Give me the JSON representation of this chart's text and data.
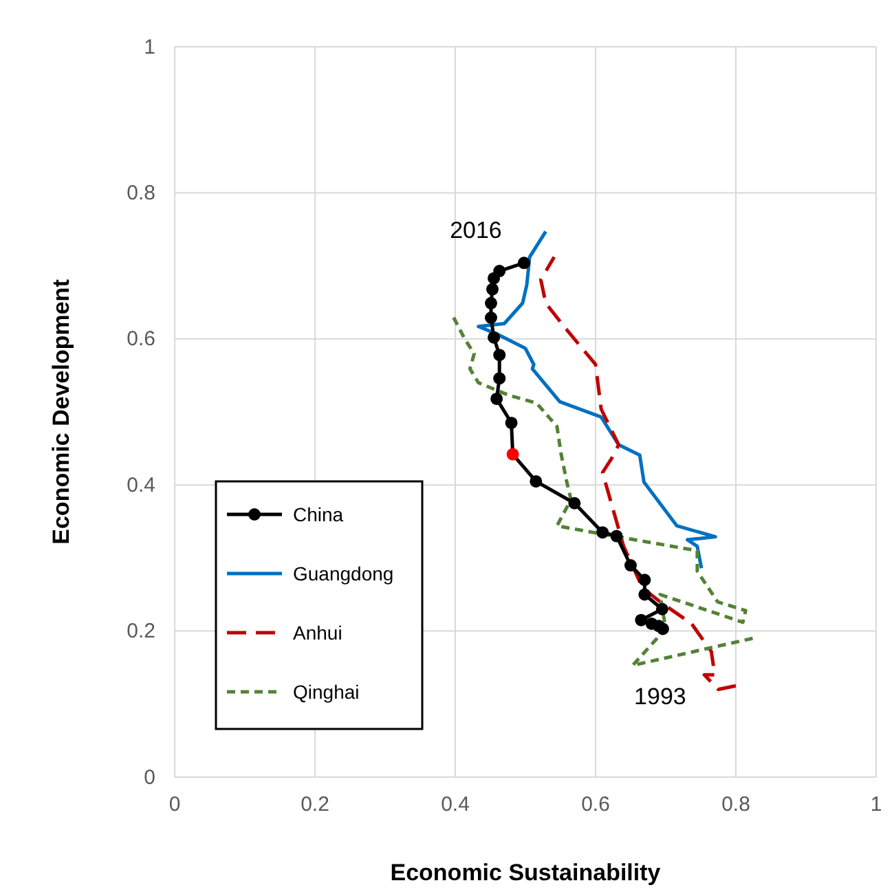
{
  "chart_data": {
    "type": "line",
    "xlabel": "Economic Sustainability",
    "ylabel": "Economic Development",
    "xlim": [
      0,
      1
    ],
    "ylim": [
      0,
      1
    ],
    "xticks": [
      0,
      0.2,
      0.4,
      0.6,
      0.8,
      1
    ],
    "yticks": [
      0,
      0.2,
      0.4,
      0.6,
      0.8,
      1
    ],
    "grid": true,
    "legend": "bottom left",
    "annotations": [
      "2016",
      "1993"
    ],
    "series": [
      {
        "name": "China",
        "color": "#000000",
        "marker": "circle",
        "line_style": "solid",
        "colors": [
          "#000000",
          "#000000",
          "#000000",
          "#000000",
          "#000000",
          "#000000",
          "#000000",
          "#000000",
          "#000000",
          "#000000",
          "#000000",
          "#000000",
          "#ff0000",
          "#000000",
          "#000000",
          "#000000",
          "#000000",
          "#000000",
          "#000000",
          "#000000",
          "#000000",
          "#000000",
          "#000000",
          "#000000"
        ],
        "x": [
          0.696,
          0.69,
          0.68,
          0.665,
          0.695,
          0.67,
          0.67,
          0.65,
          0.63,
          0.61,
          0.57,
          0.515,
          0.482,
          0.48,
          0.459,
          0.463,
          0.463,
          0.455,
          0.451,
          0.451,
          0.453,
          0.455,
          0.463,
          0.498
        ],
        "values": [
          0.203,
          0.207,
          0.21,
          0.215,
          0.23,
          0.25,
          0.27,
          0.29,
          0.33,
          0.335,
          0.375,
          0.405,
          0.442,
          0.485,
          0.518,
          0.546,
          0.578,
          0.602,
          0.629,
          0.649,
          0.668,
          0.683,
          0.693,
          0.704
        ]
      },
      {
        "name": "Guangdong",
        "color": "#0070c0",
        "marker": "none",
        "line_style": "solid",
        "x": [
          0.751,
          0.745,
          0.731,
          0.771,
          0.716,
          0.669,
          0.663,
          0.633,
          0.608,
          0.549,
          0.51,
          0.512,
          0.5,
          0.461,
          0.433,
          0.47,
          0.496,
          0.502,
          0.506,
          0.529
        ],
        "values": [
          0.286,
          0.316,
          0.325,
          0.329,
          0.344,
          0.404,
          0.441,
          0.455,
          0.493,
          0.514,
          0.559,
          0.565,
          0.587,
          0.606,
          0.617,
          0.621,
          0.649,
          0.674,
          0.712,
          0.747
        ]
      },
      {
        "name": "Anhui",
        "color": "#c00000",
        "marker": "none",
        "line_style": "dashed",
        "x": [
          0.8,
          0.775,
          0.755,
          0.77,
          0.765,
          0.737,
          0.692,
          0.667,
          0.64,
          0.61,
          0.614,
          0.624,
          0.633,
          0.608,
          0.6,
          0.555,
          0.529,
          0.522,
          0.541
        ],
        "values": [
          0.125,
          0.12,
          0.14,
          0.14,
          0.172,
          0.21,
          0.24,
          0.259,
          0.316,
          0.417,
          0.423,
          0.438,
          0.455,
          0.504,
          0.565,
          0.617,
          0.649,
          0.681,
          0.712
        ]
      },
      {
        "name": "Qinghai",
        "color": "#548235",
        "marker": "none",
        "line_style": "dotted",
        "x": [
          0.824,
          0.653,
          0.7,
          0.692,
          0.81,
          0.814,
          0.774,
          0.745,
          0.745,
          0.608,
          0.545,
          0.565,
          0.559,
          0.551,
          0.545,
          0.516,
          0.476,
          0.433,
          0.421,
          0.427,
          0.414,
          0.394
        ],
        "values": [
          0.19,
          0.153,
          0.203,
          0.25,
          0.212,
          0.228,
          0.24,
          0.282,
          0.31,
          0.333,
          0.344,
          0.38,
          0.404,
          0.442,
          0.48,
          0.512,
          0.523,
          0.54,
          0.559,
          0.58,
          0.599,
          0.636
        ]
      }
    ]
  }
}
